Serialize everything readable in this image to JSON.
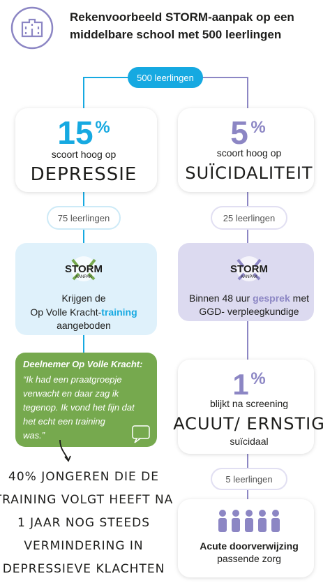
{
  "header": {
    "title_lines": [
      "Rekenvoorbeeld STORM-aanpak op een",
      "middelbare school met 500 leerlingen"
    ]
  },
  "start_pill": "500 leerlingen",
  "left": {
    "percent": {
      "number": "15",
      "sign": "%"
    },
    "subtitle": "scoort hoog op",
    "topic": "DEPRESSIE",
    "pill": "75 leerlingen",
    "storm_logo": {
      "name": "STORM",
      "sub": "AANPAK"
    },
    "action_lines": [
      [
        "Krijgen de"
      ],
      [
        "Op Volle Kracht-",
        "training"
      ],
      [
        "aangeboden"
      ]
    ],
    "quote": {
      "author": "Deelnemer Op Volle Kracht:",
      "lines": [
        "“Ik had een praatgroepje",
        "verwacht en daar zag ik",
        "tegenop. Ik vond het fijn dat",
        "het echt een training",
        "was.”"
      ]
    },
    "result_lines": [
      "40% JONGEREN DIE DE",
      "TRAINING VOLGT HEEFT NA",
      "1 JAAR NOG STEEDS",
      "VERMINDERING IN",
      "DEPRESSIEVE KLACHTEN"
    ]
  },
  "right": {
    "percent": {
      "number": "5",
      "sign": "%"
    },
    "subtitle": "scoort hoog op",
    "topic": "SUÏCIDALITEIT",
    "pill": "25 leerlingen",
    "storm_logo": {
      "name": "STORM",
      "sub": "AANPAK"
    },
    "action_lines": [
      [
        "Binnen 48 uur ",
        "gesprek",
        " met"
      ],
      [
        "GGD- verpleegkundige"
      ]
    ],
    "screening": {
      "percent": {
        "number": "1",
        "sign": "%"
      },
      "before": "blijkt na screening",
      "topic": "ACUUT/ ERNSTIG",
      "after": "suïcidaal"
    },
    "pill2": "5 leerlingen",
    "referral": {
      "title": "Acute doorverwijzing",
      "subtitle": "passende zorg"
    }
  }
}
